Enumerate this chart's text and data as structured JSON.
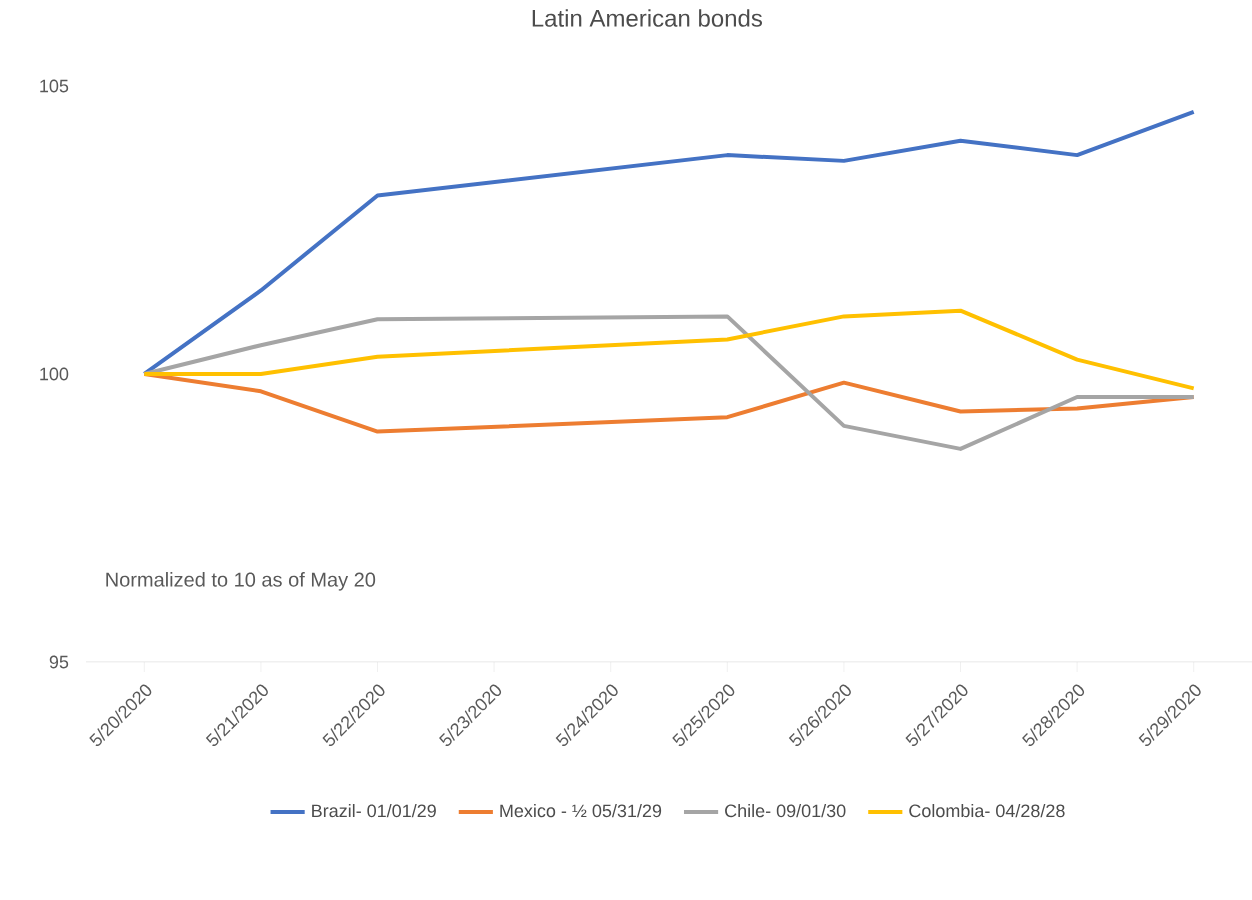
{
  "chart_data": {
    "type": "line",
    "title": "Latin American bonds",
    "x": [
      "2020-05-20",
      "2020-05-21",
      "2020-05-22",
      "2020-05-25",
      "2020-05-26",
      "2020-05-27",
      "2020-05-28",
      "2020-05-29"
    ],
    "series": [
      {
        "name": "Brazil- 01/01/29",
        "color": "#4472c4",
        "values": [
          100,
          101.45,
          103.1,
          103.8,
          103.7,
          104.05,
          103.8,
          104.55
        ]
      },
      {
        "name": "Mexico - ½ 05/31/29",
        "color": "#ed7d31",
        "values": [
          100,
          99.7,
          99.0,
          99.25,
          99.85,
          99.35,
          99.4,
          99.6
        ]
      },
      {
        "name": "Chile- 09/01/30",
        "color": "#a5a5a5",
        "values": [
          100,
          100.5,
          100.95,
          101.0,
          99.1,
          98.7,
          99.6,
          99.6
        ]
      },
      {
        "name": "Colombia- 04/28/28",
        "color": "#ffc000",
        "values": [
          100,
          100.0,
          100.3,
          100.6,
          101.0,
          101.1,
          100.25,
          99.75
        ]
      }
    ],
    "xlim": [
      "2020-05-19T12:00",
      "2020-05-29T12:00"
    ],
    "xticks": [
      {
        "value": "2020-05-20",
        "label": "5/20/2020"
      },
      {
        "value": "2020-05-21",
        "label": "5/21/2020"
      },
      {
        "value": "2020-05-22",
        "label": "5/22/2020"
      },
      {
        "value": "2020-05-23",
        "label": "5/23/2020"
      },
      {
        "value": "2020-05-24",
        "label": "5/24/2020"
      },
      {
        "value": "2020-05-25",
        "label": "5/25/2020"
      },
      {
        "value": "2020-05-26",
        "label": "5/26/2020"
      },
      {
        "value": "2020-05-27",
        "label": "5/27/2020"
      },
      {
        "value": "2020-05-28",
        "label": "5/28/2020"
      },
      {
        "value": "2020-05-29",
        "label": "5/29/2020"
      }
    ],
    "ylim": [
      95,
      105
    ],
    "yticks": [
      95,
      100,
      105
    ],
    "annotations": [
      "Normalized to 10 as of May 20"
    ],
    "legend": "bottom"
  }
}
